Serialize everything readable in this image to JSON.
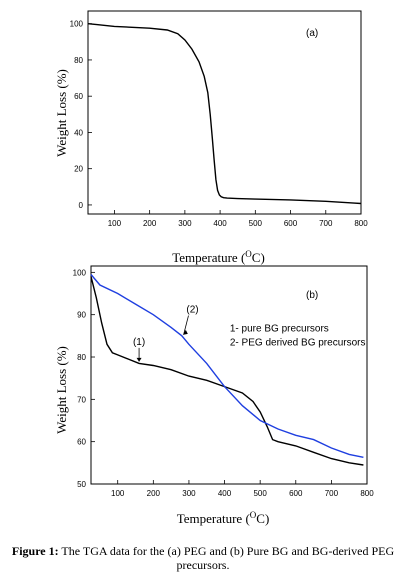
{
  "chart_data": [
    {
      "type": "line",
      "panel_label": "(a)",
      "xlabel": "Temperature",
      "xunit": "°C",
      "ylabel": "Weight Loss (%)",
      "xlim": [
        25,
        800
      ],
      "ylim": [
        -5,
        107
      ],
      "xticks": [
        100,
        200,
        300,
        400,
        500,
        600,
        700,
        800
      ],
      "yticks": [
        0,
        20,
        40,
        60,
        80,
        100
      ],
      "series": [
        {
          "color": "#000000",
          "x": [
            25,
            50,
            100,
            150,
            200,
            250,
            280,
            300,
            320,
            340,
            355,
            365,
            372,
            378,
            383,
            388,
            393,
            398,
            403,
            410,
            420,
            450,
            500,
            600,
            700,
            780,
            800
          ],
          "y": [
            100,
            99.5,
            98.5,
            98,
            97.5,
            96.5,
            94.5,
            91,
            86,
            79,
            71,
            62,
            50,
            37,
            25,
            14,
            8,
            5.5,
            4.5,
            4,
            3.8,
            3.5,
            3.2,
            2.8,
            2,
            1,
            0.8
          ]
        }
      ]
    },
    {
      "type": "line",
      "panel_label": "(b)",
      "xlabel": "Temperature",
      "xunit": "°C",
      "ylabel": "Weight Loss (%)",
      "xlim": [
        25,
        800
      ],
      "ylim": [
        50,
        101.5
      ],
      "xticks": [
        100,
        200,
        300,
        400,
        500,
        600,
        700,
        800
      ],
      "yticks": [
        50,
        60,
        70,
        80,
        90,
        100
      ],
      "annotations": [
        "(1)",
        "(2)"
      ],
      "legend_lines": [
        "1- pure BG precursors",
        "2- PEG derived BG precursors"
      ],
      "series": [
        {
          "color": "#000000",
          "x": [
            25,
            40,
            55,
            70,
            85,
            100,
            130,
            160,
            200,
            250,
            300,
            350,
            400,
            450,
            480,
            500,
            520,
            535,
            550,
            600,
            650,
            700,
            750,
            790
          ],
          "y": [
            99,
            94,
            88,
            83,
            81,
            80.5,
            79.5,
            78.5,
            78,
            77,
            75.5,
            74.5,
            73,
            71.5,
            69.5,
            67,
            63.5,
            60.5,
            60,
            59,
            57.5,
            56,
            55,
            54.5
          ]
        },
        {
          "color": "#1f3fe0",
          "x": [
            25,
            50,
            100,
            150,
            200,
            250,
            280,
            300,
            350,
            400,
            450,
            500,
            550,
            600,
            650,
            700,
            750,
            790
          ],
          "y": [
            99.5,
            97,
            95,
            92.5,
            90,
            87,
            85,
            83,
            78.5,
            73,
            68.5,
            65,
            63,
            61.5,
            60.5,
            58.5,
            57,
            56.3
          ]
        }
      ]
    }
  ],
  "caption": {
    "prefix": "Figure 1:",
    "text": " The TGA data for the (a) PEG and (b) Pure BG and BG-derived PEG precursors."
  }
}
